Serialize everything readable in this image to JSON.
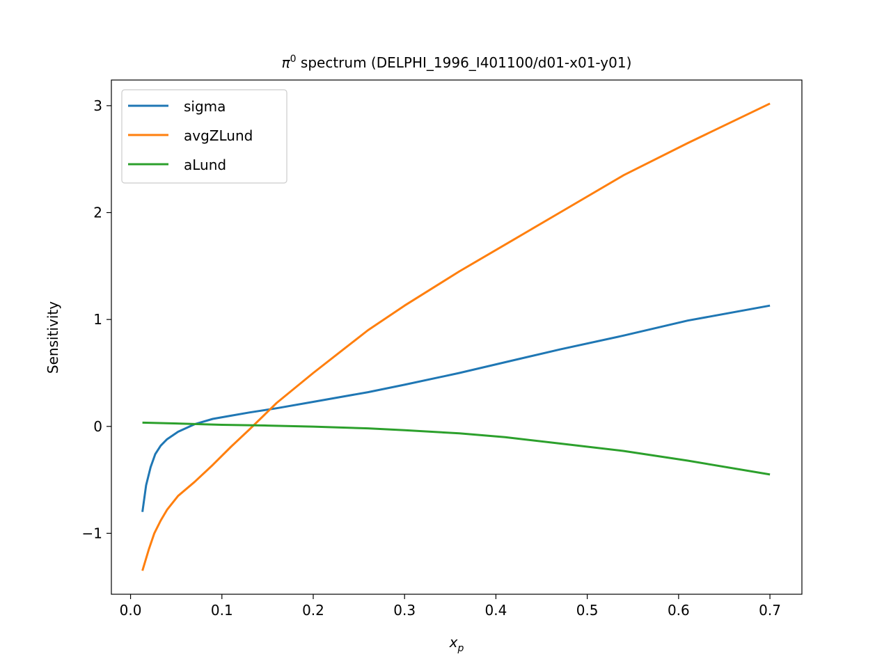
{
  "chart_data": {
    "type": "line",
    "title_symbol": "π",
    "title_sup": "0",
    "title_rest": " spectrum (DELPHI_1996_I401100/d01-x01-y01)",
    "xlabel_main": "x",
    "xlabel_sub": "p",
    "ylabel": "Sensitivity",
    "xlim": [
      -0.021,
      0.735
    ],
    "ylim": [
      -1.57,
      3.24
    ],
    "xticks": [
      0.0,
      0.1,
      0.2,
      0.3,
      0.4,
      0.5,
      0.6,
      0.7
    ],
    "xtick_labels": [
      "0.0",
      "0.1",
      "0.2",
      "0.3",
      "0.4",
      "0.5",
      "0.6",
      "0.7"
    ],
    "yticks": [
      -1,
      0,
      1,
      2,
      3
    ],
    "ytick_labels": [
      "−1",
      "0",
      "1",
      "2",
      "3"
    ],
    "legend_position": "upper-left",
    "series": [
      {
        "name": "sigma",
        "color": "#1f77b4",
        "x": [
          0.013,
          0.017,
          0.022,
          0.027,
          0.033,
          0.04,
          0.052,
          0.07,
          0.09,
          0.11,
          0.13,
          0.16,
          0.2,
          0.26,
          0.3,
          0.36,
          0.42,
          0.47,
          0.54,
          0.61,
          0.7
        ],
        "y": [
          -0.8,
          -0.55,
          -0.38,
          -0.26,
          -0.18,
          -0.12,
          -0.05,
          0.02,
          0.07,
          0.1,
          0.13,
          0.17,
          0.23,
          0.32,
          0.39,
          0.5,
          0.62,
          0.72,
          0.85,
          0.99,
          1.13
        ]
      },
      {
        "name": "avgZLund",
        "color": "#ff7f0e",
        "x": [
          0.013,
          0.02,
          0.026,
          0.033,
          0.04,
          0.052,
          0.07,
          0.09,
          0.11,
          0.13,
          0.16,
          0.2,
          0.23,
          0.26,
          0.3,
          0.36,
          0.42,
          0.47,
          0.54,
          0.61,
          0.7
        ],
        "y": [
          -1.35,
          -1.15,
          -1.0,
          -0.88,
          -0.78,
          -0.65,
          -0.52,
          -0.36,
          -0.19,
          -0.03,
          0.22,
          0.5,
          0.7,
          0.9,
          1.13,
          1.45,
          1.75,
          2.0,
          2.35,
          2.65,
          3.02
        ]
      },
      {
        "name": "aLund",
        "color": "#2ca02c",
        "x": [
          0.013,
          0.04,
          0.07,
          0.1,
          0.15,
          0.2,
          0.26,
          0.3,
          0.36,
          0.41,
          0.47,
          0.54,
          0.61,
          0.7
        ],
        "y": [
          0.035,
          0.03,
          0.022,
          0.015,
          0.008,
          -0.002,
          -0.018,
          -0.035,
          -0.065,
          -0.1,
          -0.16,
          -0.23,
          -0.32,
          -0.45
        ]
      }
    ]
  }
}
